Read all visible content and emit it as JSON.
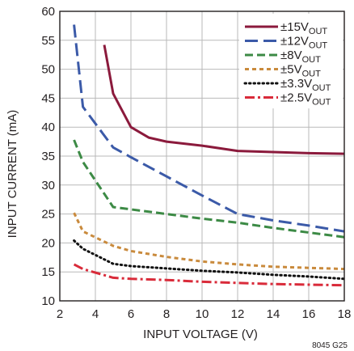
{
  "chart_data": {
    "type": "line",
    "xlabel": "INPUT VOLTAGE (V)",
    "ylabel": "INPUT CURRENT (mA)",
    "xlim": [
      2,
      18
    ],
    "ylim": [
      10,
      60
    ],
    "xticks": [
      2,
      4,
      6,
      8,
      10,
      12,
      14,
      16,
      18
    ],
    "yticks": [
      10,
      15,
      20,
      25,
      30,
      35,
      40,
      45,
      50,
      55,
      60
    ],
    "grid": true,
    "legend_position": "top-right",
    "figure_code": "8045 G25",
    "series": [
      {
        "name_prefix": "±15V",
        "name_sub": "OUT",
        "color": "#8b1a3c",
        "dash": "solid",
        "x": [
          4.5,
          5.0,
          6.0,
          7.0,
          8.0,
          10.0,
          12.0,
          14.0,
          16.0,
          18.0
        ],
        "y": [
          54.2,
          45.8,
          40.0,
          38.2,
          37.5,
          36.8,
          35.9,
          35.7,
          35.5,
          35.4
        ]
      },
      {
        "name_prefix": "±12V",
        "name_sub": "OUT",
        "color": "#3b5aa8",
        "dash": "longdash",
        "x": [
          2.8,
          3.3,
          5.0,
          6.0,
          8.0,
          10.0,
          12.0,
          14.0,
          16.0,
          18.0
        ],
        "y": [
          57.7,
          43.5,
          36.5,
          34.8,
          31.5,
          28.2,
          25.0,
          23.9,
          23.0,
          22.0
        ]
      },
      {
        "name_prefix": "±8V",
        "name_sub": "OUT",
        "color": "#3c8a45",
        "dash": "dash",
        "x": [
          2.8,
          3.3,
          5.0,
          6.0,
          8.0,
          10.0,
          12.0,
          14.0,
          16.0,
          18.0
        ],
        "y": [
          37.8,
          34.0,
          26.2,
          25.8,
          25.0,
          24.2,
          23.5,
          22.6,
          21.8,
          21.0
        ]
      },
      {
        "name_prefix": "±5V",
        "name_sub": "OUT",
        "color": "#c98a3c",
        "dash": "shortdash",
        "x": [
          2.8,
          3.3,
          5.0,
          6.0,
          8.0,
          10.0,
          12.0,
          14.0,
          16.0,
          18.0
        ],
        "y": [
          25.2,
          22.0,
          19.5,
          18.6,
          17.6,
          16.8,
          16.3,
          15.9,
          15.7,
          15.5
        ]
      },
      {
        "name_prefix": "±3.3V",
        "name_sub": "OUT",
        "color": "#111111",
        "dash": "dot",
        "x": [
          2.8,
          3.3,
          5.0,
          6.0,
          8.0,
          10.0,
          12.0,
          14.0,
          16.0,
          18.0
        ],
        "y": [
          20.4,
          19.0,
          16.4,
          16.0,
          15.6,
          15.2,
          14.9,
          14.5,
          14.2,
          13.8
        ]
      },
      {
        "name_prefix": "±2.5V",
        "name_sub": "OUT",
        "color": "#d92b3a",
        "dash": "dashdot",
        "x": [
          2.8,
          3.3,
          5.0,
          6.0,
          8.0,
          10.0,
          12.0,
          14.0,
          16.0,
          18.0
        ],
        "y": [
          16.3,
          15.5,
          14.0,
          13.8,
          13.6,
          13.3,
          13.1,
          12.9,
          12.8,
          12.7
        ]
      }
    ]
  }
}
